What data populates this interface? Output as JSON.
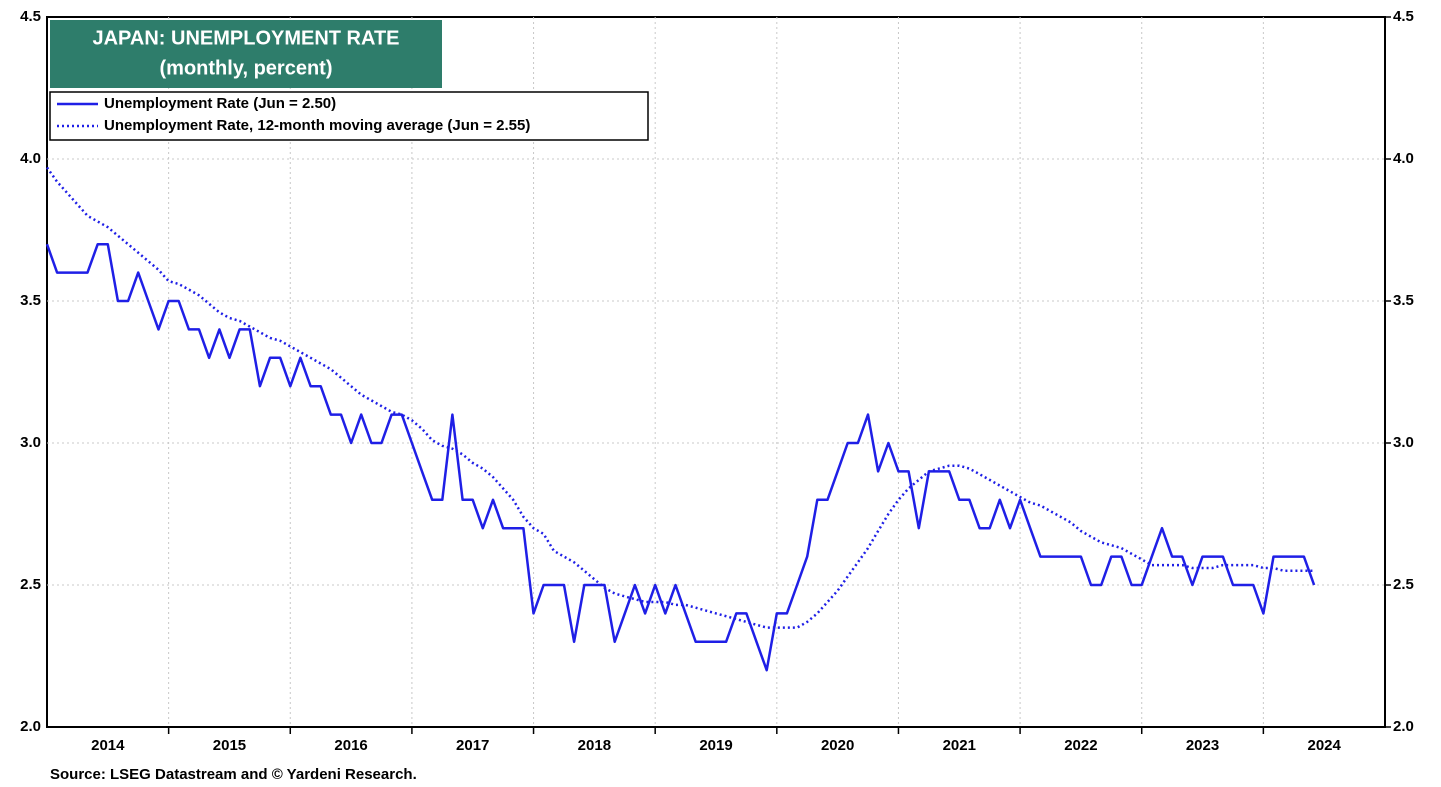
{
  "chart_data": {
    "type": "line",
    "title": "JAPAN: UNEMPLOYMENT RATE",
    "subtitle": "(monthly, percent)",
    "source": "Source: LSEG Datastream and © Yardeni Research.",
    "x": [
      2014,
      2014.083,
      2014.167,
      2014.25,
      2014.333,
      2014.417,
      2014.5,
      2014.583,
      2014.667,
      2014.75,
      2014.833,
      2014.917,
      2015,
      2015.083,
      2015.167,
      2015.25,
      2015.333,
      2015.417,
      2015.5,
      2015.583,
      2015.667,
      2015.75,
      2015.833,
      2015.917,
      2016,
      2016.083,
      2016.167,
      2016.25,
      2016.333,
      2016.417,
      2016.5,
      2016.583,
      2016.667,
      2016.75,
      2016.833,
      2016.917,
      2017,
      2017.083,
      2017.167,
      2017.25,
      2017.333,
      2017.417,
      2017.5,
      2017.583,
      2017.667,
      2017.75,
      2017.833,
      2017.917,
      2018,
      2018.083,
      2018.167,
      2018.25,
      2018.333,
      2018.417,
      2018.5,
      2018.583,
      2018.667,
      2018.75,
      2018.833,
      2018.917,
      2019,
      2019.083,
      2019.167,
      2019.25,
      2019.333,
      2019.417,
      2019.5,
      2019.583,
      2019.667,
      2019.75,
      2019.833,
      2019.917,
      2020,
      2020.083,
      2020.167,
      2020.25,
      2020.333,
      2020.417,
      2020.5,
      2020.583,
      2020.667,
      2020.75,
      2020.833,
      2020.917,
      2021,
      2021.083,
      2021.167,
      2021.25,
      2021.333,
      2021.417,
      2021.5,
      2021.583,
      2021.667,
      2021.75,
      2021.833,
      2021.917,
      2022,
      2022.083,
      2022.167,
      2022.25,
      2022.333,
      2022.417,
      2022.5,
      2022.583,
      2022.667,
      2022.75,
      2022.833,
      2022.917,
      2023,
      2023.083,
      2023.167,
      2023.25,
      2023.333,
      2023.417,
      2023.5,
      2023.583,
      2023.667,
      2023.75,
      2023.833,
      2023.917,
      2024,
      2024.083,
      2024.167,
      2024.25,
      2024.333,
      2024.417
    ],
    "series": [
      {
        "name": "Unemployment Rate (Jun = 2.50)",
        "color": "#1f1fe6",
        "style": "solid",
        "values": [
          3.7,
          3.6,
          3.6,
          3.6,
          3.6,
          3.7,
          3.7,
          3.5,
          3.5,
          3.6,
          3.5,
          3.4,
          3.5,
          3.5,
          3.4,
          3.4,
          3.3,
          3.4,
          3.3,
          3.4,
          3.4,
          3.2,
          3.3,
          3.3,
          3.2,
          3.3,
          3.2,
          3.2,
          3.1,
          3.1,
          3.0,
          3.1,
          3.0,
          3.0,
          3.1,
          3.1,
          3.0,
          2.9,
          2.8,
          2.8,
          3.1,
          2.8,
          2.8,
          2.7,
          2.8,
          2.7,
          2.7,
          2.7,
          2.4,
          2.5,
          2.5,
          2.5,
          2.3,
          2.5,
          2.5,
          2.5,
          2.3,
          2.4,
          2.5,
          2.4,
          2.5,
          2.4,
          2.5,
          2.4,
          2.3,
          2.3,
          2.3,
          2.3,
          2.4,
          2.4,
          2.3,
          2.2,
          2.4,
          2.4,
          2.5,
          2.6,
          2.8,
          2.8,
          2.9,
          3.0,
          3.0,
          3.1,
          2.9,
          3.0,
          2.9,
          2.9,
          2.7,
          2.9,
          2.9,
          2.9,
          2.8,
          2.8,
          2.7,
          2.7,
          2.8,
          2.7,
          2.8,
          2.7,
          2.6,
          2.6,
          2.6,
          2.6,
          2.6,
          2.5,
          2.5,
          2.6,
          2.6,
          2.5,
          2.5,
          2.6,
          2.7,
          2.6,
          2.6,
          2.5,
          2.6,
          2.6,
          2.6,
          2.5,
          2.5,
          2.5,
          2.4,
          2.6,
          2.6,
          2.6,
          2.6,
          2.5
        ]
      },
      {
        "name": "Unemployment Rate, 12-month moving average (Jun = 2.55)",
        "color": "#1f1fe6",
        "style": "dotted",
        "values": [
          3.97,
          3.92,
          3.88,
          3.84,
          3.8,
          3.78,
          3.76,
          3.73,
          3.7,
          3.67,
          3.64,
          3.61,
          3.57,
          3.56,
          3.54,
          3.52,
          3.49,
          3.46,
          3.44,
          3.43,
          3.41,
          3.39,
          3.37,
          3.36,
          3.34,
          3.32,
          3.3,
          3.28,
          3.26,
          3.23,
          3.2,
          3.17,
          3.15,
          3.13,
          3.11,
          3.1,
          3.08,
          3.05,
          3.01,
          2.99,
          2.98,
          2.96,
          2.93,
          2.91,
          2.88,
          2.84,
          2.8,
          2.74,
          2.7,
          2.68,
          2.62,
          2.6,
          2.58,
          2.55,
          2.52,
          2.49,
          2.47,
          2.46,
          2.45,
          2.44,
          2.44,
          2.44,
          2.43,
          2.43,
          2.42,
          2.41,
          2.4,
          2.39,
          2.38,
          2.37,
          2.36,
          2.35,
          2.35,
          2.35,
          2.35,
          2.37,
          2.4,
          2.44,
          2.48,
          2.53,
          2.58,
          2.63,
          2.69,
          2.75,
          2.8,
          2.84,
          2.87,
          2.9,
          2.91,
          2.92,
          2.92,
          2.91,
          2.89,
          2.87,
          2.85,
          2.83,
          2.81,
          2.79,
          2.78,
          2.76,
          2.74,
          2.72,
          2.69,
          2.67,
          2.65,
          2.64,
          2.63,
          2.61,
          2.59,
          2.57,
          2.57,
          2.57,
          2.57,
          2.56,
          2.56,
          2.56,
          2.57,
          2.57,
          2.57,
          2.57,
          2.56,
          2.56,
          2.55,
          2.55,
          2.55,
          2.55
        ]
      }
    ],
    "xlim": [
      2014,
      2025
    ],
    "xticks": [
      {
        "value": 2014.5,
        "label": "2014"
      },
      {
        "value": 2015.5,
        "label": "2015"
      },
      {
        "value": 2016.5,
        "label": "2016"
      },
      {
        "value": 2017.5,
        "label": "2017"
      },
      {
        "value": 2018.5,
        "label": "2018"
      },
      {
        "value": 2019.5,
        "label": "2019"
      },
      {
        "value": 2020.5,
        "label": "2020"
      },
      {
        "value": 2021.5,
        "label": "2021"
      },
      {
        "value": 2022.5,
        "label": "2022"
      },
      {
        "value": 2023.5,
        "label": "2023"
      },
      {
        "value": 2024.5,
        "label": "2024"
      }
    ],
    "xgrid": [
      2015,
      2016,
      2017,
      2018,
      2019,
      2020,
      2021,
      2022,
      2023,
      2024
    ],
    "ylim": [
      2,
      4.5
    ],
    "yticks": [
      {
        "value": 2,
        "label": "2.0"
      },
      {
        "value": 2.5,
        "label": "2.5"
      },
      {
        "value": 3,
        "label": "3.0"
      },
      {
        "value": 3.5,
        "label": "3.5"
      },
      {
        "value": 4,
        "label": "4.0"
      },
      {
        "value": 4.5,
        "label": "4.5"
      }
    ],
    "grid": true
  }
}
